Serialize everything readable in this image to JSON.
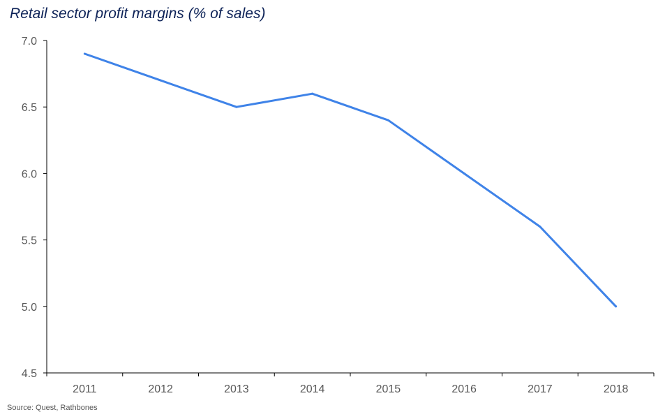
{
  "title": "Retail sector profit margins (% of sales)",
  "source": "Source: Quest, Rathbones",
  "colors": {
    "line": "#3f83e8",
    "axis": "#000000",
    "text": "#595959",
    "title": "#0d2257"
  },
  "chart_data": {
    "type": "line",
    "title": "Retail sector profit margins (% of sales)",
    "xlabel": "",
    "ylabel": "",
    "categories": [
      "2011",
      "2012",
      "2013",
      "2014",
      "2015",
      "2016",
      "2017",
      "2018"
    ],
    "series": [
      {
        "values": [
          6.9,
          6.7,
          6.5,
          6.6,
          6.4,
          6.0,
          5.6,
          5.0
        ]
      }
    ],
    "ylim": [
      4.5,
      7.0
    ],
    "yticks": [
      "4.5",
      "5.0",
      "5.5",
      "6.0",
      "6.5",
      "7.0"
    ],
    "grid": false,
    "legend": "none"
  }
}
